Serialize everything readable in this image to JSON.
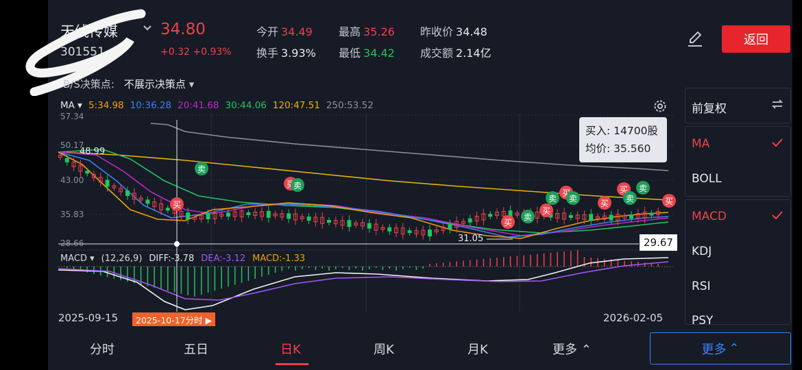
{
  "stock": {
    "name": "天线传媒",
    "code": "301551"
  },
  "quote": {
    "price": "34.80",
    "change": "+0.32 +0.93%",
    "open_label": "今开",
    "open": "34.49",
    "high_label": "最高",
    "high": "35.26",
    "prev_close_label": "昨收价",
    "prev_close": "34.48",
    "turnover_label": "换手",
    "turnover": "3.93%",
    "low_label": "最低",
    "low": "34.42",
    "amount_label": "成交额",
    "amount": "2.14亿"
  },
  "back_label": "返回",
  "bs": {
    "label": "B/S决策点:",
    "value": "不展示决策点"
  },
  "ma": {
    "label": "MA",
    "items": [
      {
        "text": "5:34.98",
        "color": "#f59e0b"
      },
      {
        "text": "10:36.28",
        "color": "#3b82f6"
      },
      {
        "text": "20:41.68",
        "color": "#c026d3"
      },
      {
        "text": "30:44.06",
        "color": "#22c55e"
      },
      {
        "text": "120:47.51",
        "color": "#eab308"
      },
      {
        "text": "250:53.52",
        "color": "#8c919c"
      }
    ]
  },
  "axis": {
    "y1": "57.34",
    "y2": "50.17",
    "y3": "43.00",
    "y4": "35.83",
    "y5": "28.66",
    "high_mark": "48.99",
    "low_mark": "31.05",
    "cursor_price": "29.67"
  },
  "tooltip": {
    "line1": "买入: 14700股",
    "line2": "均价: 35.560"
  },
  "markers": {
    "buy": "买",
    "sell": "卖"
  },
  "macd": {
    "label": "MACD",
    "params": "(12,26,9)",
    "diff": "DIFF:-3.78",
    "dea": "DEA:-3.12",
    "macd": "MACD:-1.33"
  },
  "dates": {
    "start": "2025-09-15",
    "cursor": "2025-10-17分时 ▶",
    "end": "2026-02-05"
  },
  "side": {
    "adjust": "前复权",
    "main_indicators": [
      "MA",
      "BOLL"
    ],
    "sub_indicators": [
      "MACD",
      "KDJ",
      "RSI",
      "PSY"
    ]
  },
  "tabs": [
    "分时",
    "五日",
    "日K",
    "周K",
    "月K",
    "更多"
  ],
  "more_label": "更多",
  "colors": {
    "up": "#f0414b",
    "down": "#22c55e",
    "accent_blue": "#3b82f6",
    "brand_red": "#e8242c"
  }
}
